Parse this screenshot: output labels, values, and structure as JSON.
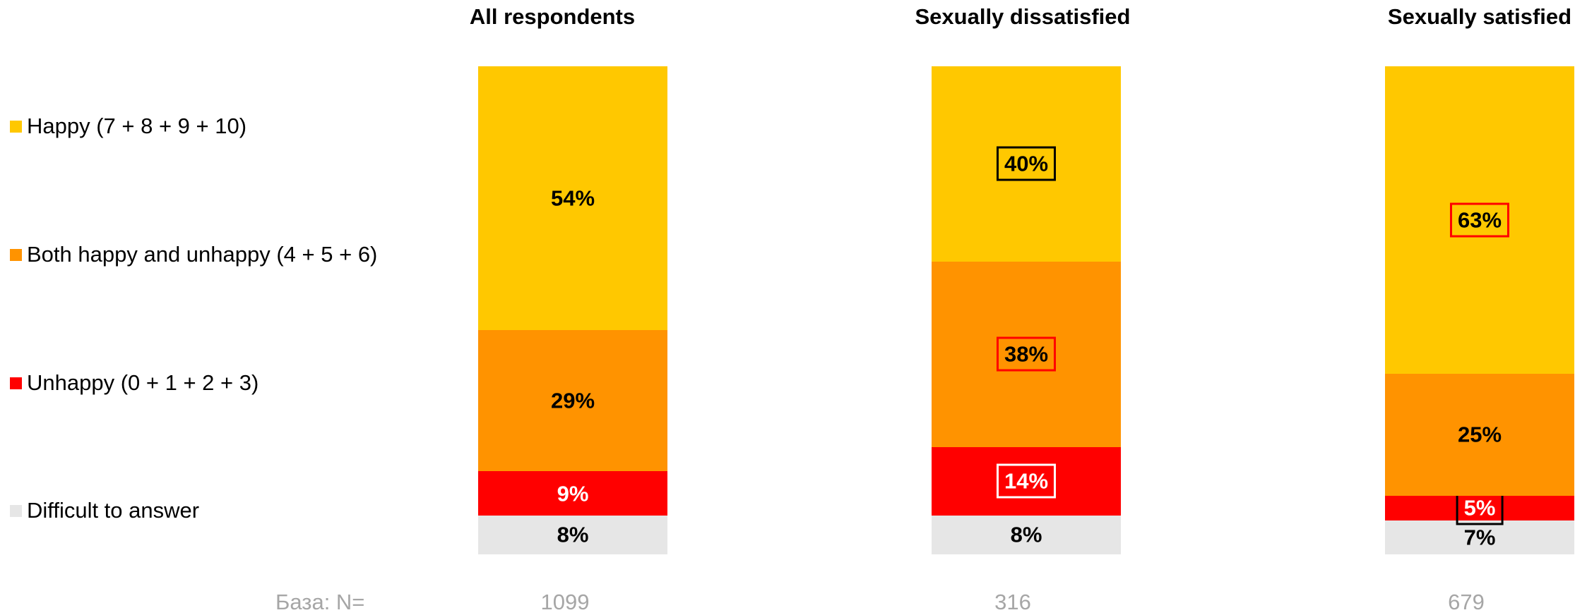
{
  "colors": {
    "happy": "#FFC800",
    "both": "#FF9300",
    "unhappy": "#FF0000",
    "difficult": "#E6E6E6",
    "base_text": "#A6A6A6"
  },
  "legend": [
    {
      "label": "Happy (7 + 8 + 9 + 10)",
      "color": "#FFC800"
    },
    {
      "label": "Both happy and unhappy (4 + 5 + 6)",
      "color": "#FF9300"
    },
    {
      "label": "Unhappy (0 + 1 + 2 + 3)",
      "color": "#FF0000"
    },
    {
      "label": "Difficult to answer",
      "color": "#E6E6E6"
    }
  ],
  "base": {
    "label": "База: N=",
    "values": [
      "1099",
      "316",
      "679"
    ]
  },
  "chart_data": {
    "type": "bar",
    "stacked": true,
    "orientation": "vertical",
    "percent_stacked": true,
    "categories": [
      "All respondents",
      "Sexually dissatisfied",
      "Sexually satisfied"
    ],
    "series": [
      {
        "name": "Difficult to answer",
        "color": "#E6E6E6",
        "values": [
          8,
          8,
          7
        ],
        "labels": [
          "8%",
          "8%",
          "7%"
        ],
        "label_colors": [
          "#000000",
          "#000000",
          "#000000"
        ],
        "boxes": [
          null,
          null,
          null
        ]
      },
      {
        "name": "Unhappy (0 + 1 + 2 + 3)",
        "color": "#FF0000",
        "values": [
          9,
          14,
          5
        ],
        "labels": [
          "9%",
          "14%",
          "5%"
        ],
        "label_colors": [
          "#FFFFFF",
          "#FFFFFF",
          "#FFFFFF"
        ],
        "boxes": [
          null,
          "#FFFFFF",
          "#000000"
        ]
      },
      {
        "name": "Both happy and unhappy (4 + 5 + 6)",
        "color": "#FF9300",
        "values": [
          29,
          38,
          25
        ],
        "labels": [
          "29%",
          "38%",
          "25%"
        ],
        "label_colors": [
          "#000000",
          "#000000",
          "#000000"
        ],
        "boxes": [
          null,
          "#FF0000",
          null
        ]
      },
      {
        "name": "Happy (7 + 8 + 9 + 10)",
        "color": "#FFC800",
        "values": [
          54,
          40,
          63
        ],
        "labels": [
          "54%",
          "40%",
          "63%"
        ],
        "label_colors": [
          "#000000",
          "#000000",
          "#000000"
        ],
        "boxes": [
          null,
          "#000000",
          "#FF0000"
        ]
      }
    ],
    "ylim": [
      0,
      100
    ],
    "legend_position": "left"
  }
}
